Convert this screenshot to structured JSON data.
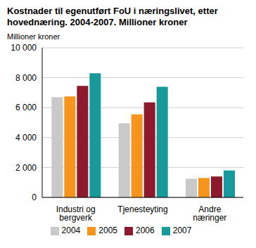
{
  "chart_data": {
    "type": "bar",
    "title": "Kostnader til egenutført FoU i næringslivet, etter hovednæring. 2004-2007. Millioner kroner",
    "ylabel": "Millioner kroner",
    "categories": [
      "Industri og bergverk",
      "Tjenesteyting",
      "Andre næringer"
    ],
    "series": [
      {
        "name": "2004",
        "color": "#c9c9c9",
        "values": [
          6700,
          4950,
          1250
        ]
      },
      {
        "name": "2005",
        "color": "#f7941d",
        "values": [
          6750,
          5550,
          1300
        ]
      },
      {
        "name": "2006",
        "color": "#8c1a2c",
        "values": [
          7450,
          6350,
          1400
        ]
      },
      {
        "name": "2007",
        "color": "#18999a",
        "values": [
          8300,
          7400,
          1800
        ]
      }
    ],
    "ylim": [
      0,
      10000
    ],
    "yticks": [
      {
        "value": 0,
        "label": "0"
      },
      {
        "value": 2000,
        "label": "2 000"
      },
      {
        "value": 4000,
        "label": "4 000"
      },
      {
        "value": 6000,
        "label": "6 000"
      },
      {
        "value": 8000,
        "label": "8 000"
      },
      {
        "value": 10000,
        "label": "10 000"
      }
    ],
    "grid": true,
    "legend": "bottom"
  }
}
